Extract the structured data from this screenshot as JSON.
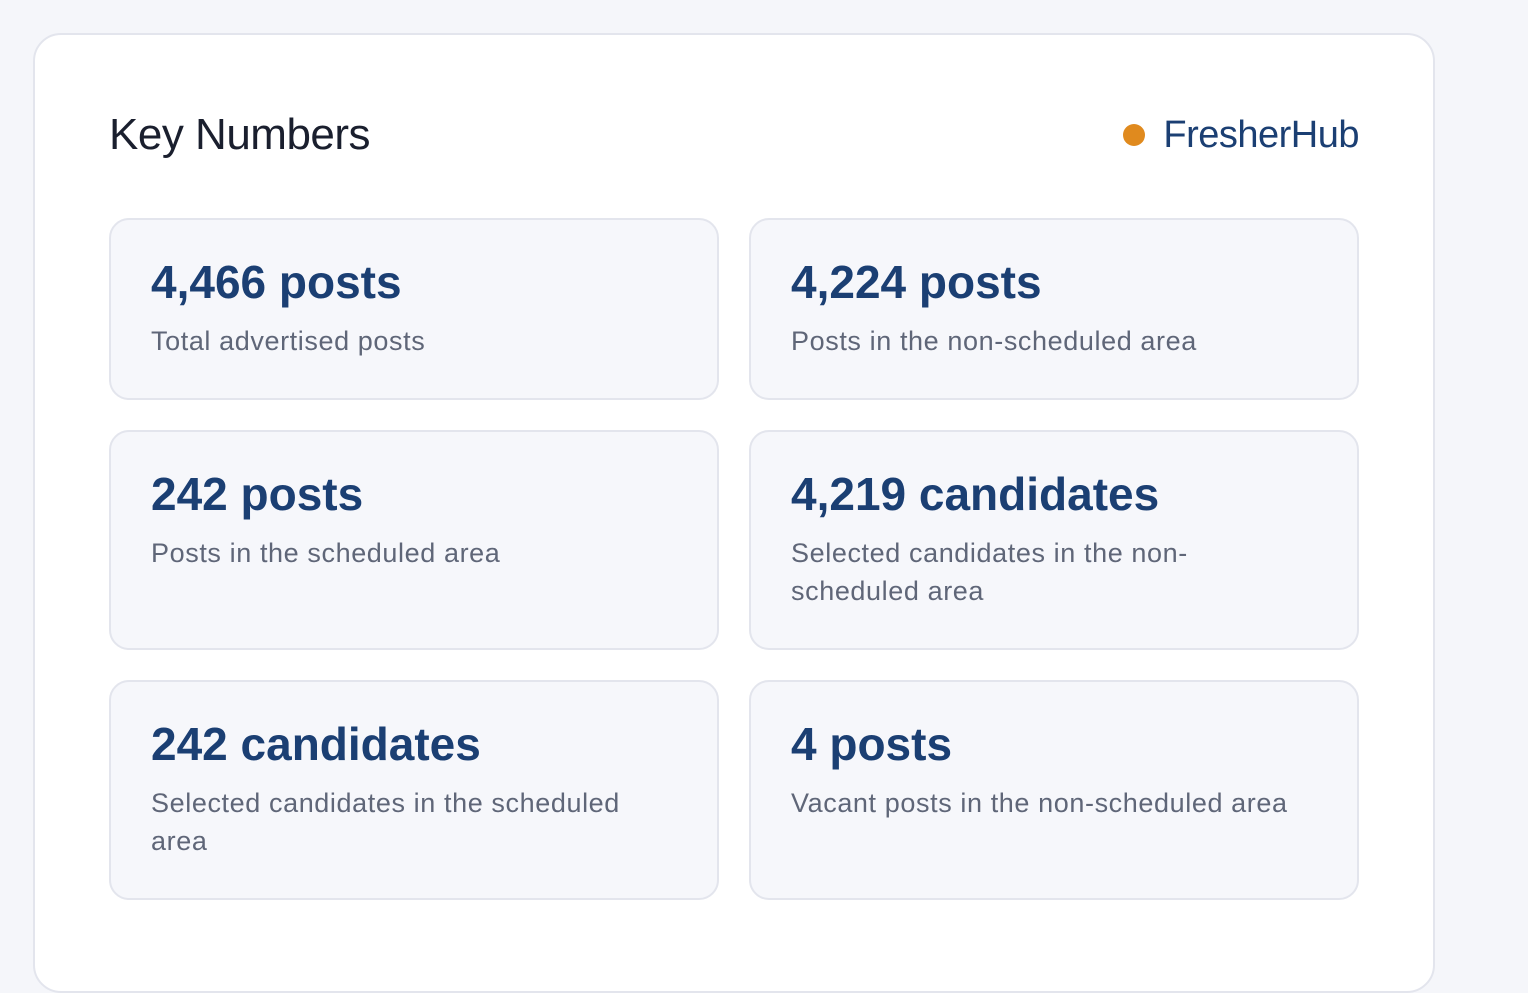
{
  "header": {
    "title": "Key Numbers",
    "brand": "FresherHub"
  },
  "cards": [
    {
      "value": "4,466 posts",
      "label": "Total advertised posts"
    },
    {
      "value": "4,224 posts",
      "label": "Posts in the non-scheduled area"
    },
    {
      "value": "242 posts",
      "label": "Posts in the scheduled area"
    },
    {
      "value": "4,219 candidates",
      "label": "Selected candidates in the non-scheduled area"
    },
    {
      "value": "242 candidates",
      "label": "Selected candidates in the scheduled area"
    },
    {
      "value": "4 posts",
      "label": "Vacant posts in the non-scheduled area"
    }
  ]
}
